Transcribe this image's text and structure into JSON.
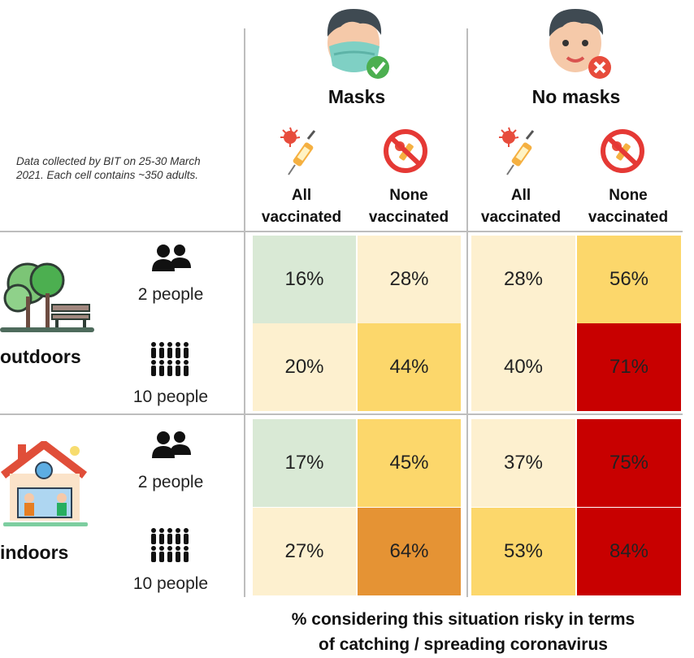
{
  "note": "Data collected by BIT on 25-30 March 2021. Each cell contains ~350 adults.",
  "caption": {
    "line1": "% considering this situation risky in terms",
    "line2": "of catching / spreading coronavirus"
  },
  "groups": [
    {
      "title": "Masks",
      "icon": "masked-face-icon"
    },
    {
      "title": "No masks",
      "icon": "unmasked-face-icon"
    }
  ],
  "columns": [
    {
      "line1": "All",
      "line2": "vaccinated",
      "icon": "vaccine-syringe-icon"
    },
    {
      "line1": "None",
      "line2": "vaccinated",
      "icon": "no-vaccine-icon"
    },
    {
      "line1": "All",
      "line2": "vaccinated",
      "icon": "vaccine-syringe-icon"
    },
    {
      "line1": "None",
      "line2": "vaccinated",
      "icon": "no-vaccine-icon"
    }
  ],
  "settings": [
    {
      "label": "outdoors",
      "icon": "park-icon"
    },
    {
      "label": "indoors",
      "icon": "house-icon"
    }
  ],
  "sizes": [
    {
      "label": "2 people",
      "icon": "two-people-icon"
    },
    {
      "label": "10 people",
      "icon": "ten-people-icon"
    },
    {
      "label": "2 people",
      "icon": "two-people-icon"
    },
    {
      "label": "10 people",
      "icon": "ten-people-icon"
    }
  ],
  "colors": {
    "green": "#d9e9d5",
    "light": "#fdf0cf",
    "yellow": "#fcd76b",
    "orange": "#e59334",
    "red": "#c80000"
  },
  "chart_data": {
    "type": "heatmap",
    "columns": [
      "Masks, All vaccinated",
      "Masks, None vaccinated",
      "No masks, All vaccinated",
      "No masks, None vaccinated"
    ],
    "rows": [
      "outdoors, 2 people",
      "outdoors, 10 people",
      "indoors, 2 people",
      "indoors, 10 people"
    ],
    "values": [
      [
        16,
        28,
        28,
        56
      ],
      [
        20,
        44,
        40,
        71
      ],
      [
        17,
        45,
        37,
        75
      ],
      [
        27,
        64,
        53,
        84
      ]
    ],
    "labels": [
      [
        "16%",
        "28%",
        "28%",
        "56%"
      ],
      [
        "20%",
        "44%",
        "40%",
        "71%"
      ],
      [
        "17%",
        "45%",
        "37%",
        "75%"
      ],
      [
        "27%",
        "64%",
        "53%",
        "84%"
      ]
    ],
    "unit": "%"
  }
}
